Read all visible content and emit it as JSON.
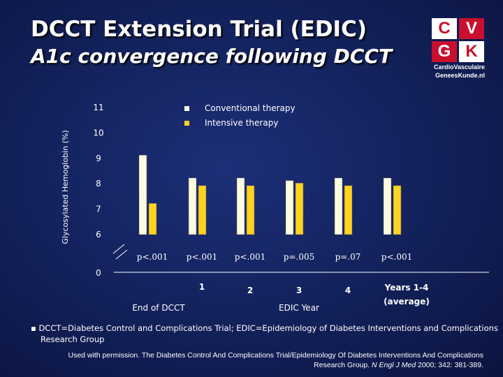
{
  "header": {
    "title": "DCCT Extension Trial (EDIC)",
    "subtitle": "A1c convergence following DCCT"
  },
  "logo": {
    "letters": [
      "C",
      "V",
      "G",
      "K"
    ],
    "line1": "CardioVasculaire",
    "line2": "GeneesKunde.nl"
  },
  "colors": {
    "conventional": "#fffde0",
    "intensive": "#ffd21e",
    "axis": "#ffffff",
    "brand_red": "#c8102e"
  },
  "chart_data": {
    "type": "bar",
    "ylabel": "Glycosylated Hemoglobin (%)",
    "yticks": [
      11,
      10,
      9,
      8,
      7,
      6,
      0
    ],
    "ylim": [
      6,
      11
    ],
    "axis_break": true,
    "legend_position": "top-center",
    "series": [
      {
        "name": "Conventional therapy",
        "values": [
          9.1,
          8.2,
          8.2,
          8.1,
          8.2,
          8.2
        ]
      },
      {
        "name": "Intensive therapy",
        "values": [
          7.2,
          7.9,
          7.9,
          8.0,
          7.9,
          7.9
        ]
      }
    ],
    "categories": [
      "",
      "1",
      "2",
      "3",
      "4",
      "Years 1-4 (average)"
    ],
    "p_values": [
      "p<.001",
      "p<.001",
      "p<.001",
      "p=.005",
      "p=.07",
      "p<.001"
    ],
    "group_labels": [
      "End of DCCT",
      "EDIC Year"
    ]
  },
  "footnote": "DCCT=Diabetes Control and Complications Trial; EDIC=Epidemiology of Diabetes Interventions and Complications Research Group",
  "citation": {
    "prefix": "Used with permission. The Diabetes Control And Complications Trial/Epidemiology Of Diabetes Interventions And Complications Research Group. ",
    "journal": "N Engl J Med",
    "suffix": " 2000; 342: 381-389."
  }
}
